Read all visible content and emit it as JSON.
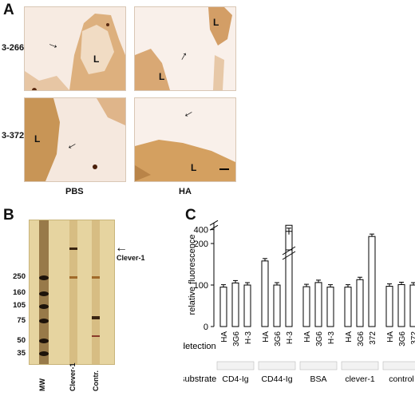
{
  "panelA": {
    "letter": "A",
    "row_labels": [
      "3-266",
      "3-372"
    ],
    "col_labels": [
      "PBS",
      "HA"
    ],
    "lumen_label": "L"
  },
  "panelB": {
    "letter": "B",
    "lanes": [
      "MW",
      "Clever-1",
      "Contr."
    ],
    "mw_markers": [
      "250",
      "160",
      "105",
      "75",
      "50",
      "35"
    ],
    "arrow_label": "Clever-1"
  },
  "panelC": {
    "letter": "C",
    "row_detection": "detection",
    "row_substrate": "substrate",
    "chart_data": {
      "type": "bar",
      "ylabel": "relative fluorescence",
      "yticks": [
        "0",
        "100",
        "200",
        "300",
        "400"
      ],
      "axis_break": true,
      "groups": [
        {
          "substrate": "CD4-Ig",
          "bars": [
            {
              "detection": "HA",
              "value": 95
            },
            {
              "detection": "3G6",
              "value": 105
            },
            {
              "detection": "H-3",
              "value": 100
            }
          ]
        },
        {
          "substrate": "CD44-Ig",
          "bars": [
            {
              "detection": "HA",
              "value": 158
            },
            {
              "detection": "3G6",
              "value": 100
            },
            {
              "detection": "H-3",
              "value": 395
            }
          ]
        },
        {
          "substrate": "BSA",
          "bars": [
            {
              "detection": "HA",
              "value": 96
            },
            {
              "detection": "3G6",
              "value": 106
            },
            {
              "detection": "H-3",
              "value": 95
            }
          ]
        },
        {
          "substrate": "clever-1",
          "bars": [
            {
              "detection": "HA",
              "value": 95
            },
            {
              "detection": "3G6",
              "value": 113
            },
            {
              "detection": "372",
              "value": 217
            }
          ]
        },
        {
          "substrate": "control",
          "bars": [
            {
              "detection": "HA",
              "value": 97
            },
            {
              "detection": "3G6",
              "value": 101
            },
            {
              "detection": "372",
              "value": 100
            }
          ]
        }
      ]
    }
  }
}
